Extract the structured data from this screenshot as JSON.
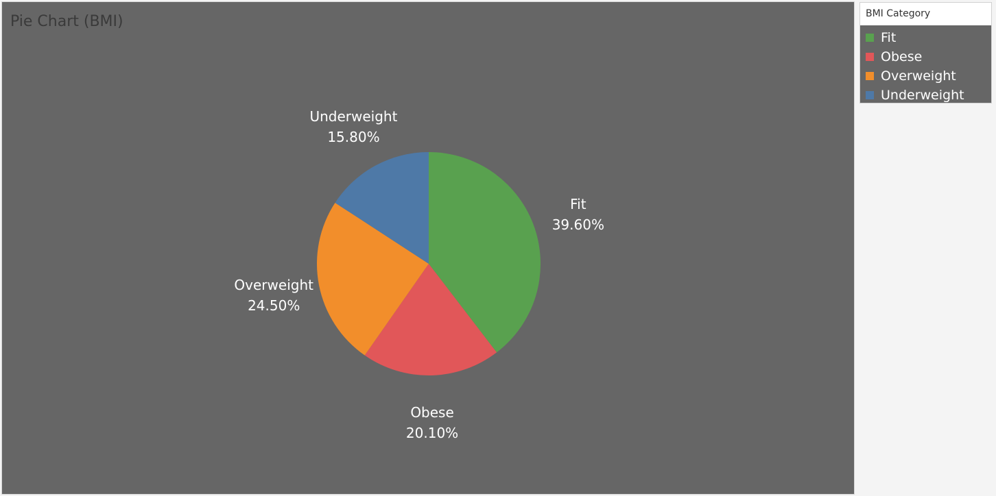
{
  "legend": {
    "title": "BMI Category",
    "items": [
      {
        "label": "Fit",
        "color": "#59a14f"
      },
      {
        "label": "Obese",
        "color": "#e15759"
      },
      {
        "label": "Overweight",
        "color": "#f28e2b"
      },
      {
        "label": "Underweight",
        "color": "#4e79a7"
      }
    ]
  },
  "chart_data": {
    "type": "pie",
    "title": "Pie Chart (BMI)",
    "categories": [
      "Fit",
      "Obese",
      "Overweight",
      "Underweight"
    ],
    "values": [
      39.6,
      20.1,
      24.5,
      15.8
    ],
    "value_labels": [
      "39.60%",
      "20.10%",
      "24.50%",
      "15.80%"
    ],
    "colors": [
      "#59a14f",
      "#e15759",
      "#f28e2b",
      "#4e79a7"
    ],
    "start_angle": "12 o'clock",
    "direction": "clockwise",
    "legend": "right"
  }
}
